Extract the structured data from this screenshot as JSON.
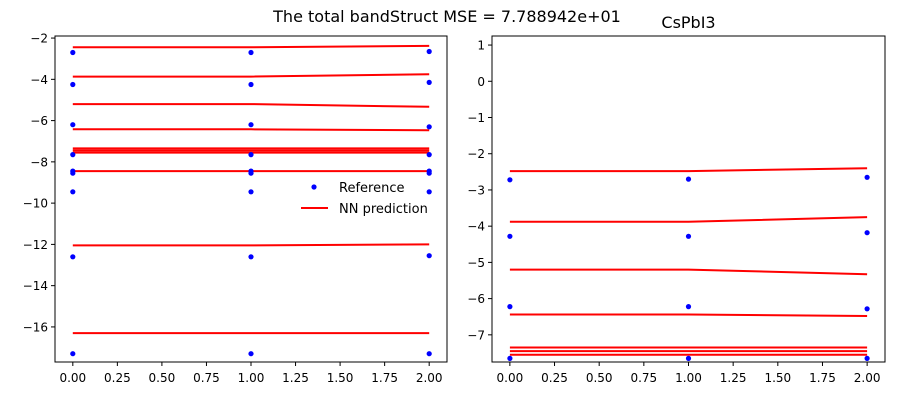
{
  "figure": {
    "suptitle": "The total bandStruct MSE = 7.788942e+01"
  },
  "chart_data": [
    {
      "type": "line",
      "title": "",
      "xlabel": "",
      "ylabel": "",
      "xlim": [
        -0.1,
        2.1
      ],
      "ylim": [
        -17.7,
        -1.9
      ],
      "xticks": [
        0,
        0.25,
        0.5,
        0.75,
        1,
        1.25,
        1.5,
        1.75,
        2
      ],
      "xtick_labels": [
        "0.00",
        "0.25",
        "0.50",
        "0.75",
        "1.00",
        "1.25",
        "1.50",
        "1.75",
        "2.00"
      ],
      "yticks": [
        -16,
        -14,
        -12,
        -10,
        -8,
        -6,
        -4,
        -2
      ],
      "ytick_labels": [
        "−16",
        "−14",
        "−12",
        "−10",
        "−8",
        "−6",
        "−4",
        "−2"
      ],
      "legend": {
        "placement": "center-right",
        "entries": [
          {
            "label": "Reference",
            "marker": "dot",
            "color": "#0000ff"
          },
          {
            "label": "NN prediction",
            "marker": "line",
            "color": "#ff0000"
          }
        ]
      },
      "reference": {
        "name": "Reference",
        "color": "#0000ff",
        "x": [
          0,
          1,
          2
        ],
        "bands": [
          [
            -2.7,
            -2.7,
            -2.65
          ],
          [
            -4.25,
            -4.25,
            -4.15
          ],
          [
            -6.2,
            -6.2,
            -6.3
          ],
          [
            -7.65,
            -7.65,
            -7.65
          ],
          [
            -8.45,
            -8.45,
            -8.45
          ],
          [
            -8.55,
            -8.55,
            -8.55
          ],
          [
            -9.45,
            -9.45,
            -9.45
          ],
          [
            -12.6,
            -12.6,
            -12.55
          ],
          [
            -17.3,
            -17.3,
            -17.3
          ]
        ]
      },
      "prediction": {
        "name": "NN prediction",
        "color": "#ff0000",
        "x": [
          0,
          1,
          2
        ],
        "bands": [
          [
            -2.45,
            -2.45,
            -2.38
          ],
          [
            -3.87,
            -3.87,
            -3.75
          ],
          [
            -5.2,
            -5.2,
            -5.33
          ],
          [
            -6.42,
            -6.42,
            -6.47
          ],
          [
            -7.35,
            -7.35,
            -7.35
          ],
          [
            -7.45,
            -7.45,
            -7.45
          ],
          [
            -7.55,
            -7.55,
            -7.55
          ],
          [
            -8.45,
            -8.45,
            -8.45
          ],
          [
            -12.05,
            -12.05,
            -12.0
          ],
          [
            -16.3,
            -16.3,
            -16.3
          ]
        ]
      }
    },
    {
      "type": "line",
      "title": "CsPbI3",
      "xlabel": "",
      "ylabel": "",
      "xlim": [
        -0.1,
        2.1
      ],
      "ylim": [
        -7.75,
        1.25
      ],
      "xticks": [
        0,
        0.25,
        0.5,
        0.75,
        1,
        1.25,
        1.5,
        1.75,
        2
      ],
      "xtick_labels": [
        "0.00",
        "0.25",
        "0.50",
        "0.75",
        "1.00",
        "1.25",
        "1.50",
        "1.75",
        "2.00"
      ],
      "yticks": [
        -7,
        -6,
        -5,
        -4,
        -3,
        -2,
        -1,
        0,
        1
      ],
      "ytick_labels": [
        "−7",
        "−6",
        "−5",
        "−4",
        "−3",
        "−2",
        "−1",
        "0",
        "1"
      ],
      "reference": {
        "name": "Reference",
        "color": "#0000ff",
        "x": [
          0,
          1,
          2
        ],
        "bands": [
          [
            -2.72,
            -2.7,
            -2.65
          ],
          [
            -4.28,
            -4.28,
            -4.18
          ],
          [
            -6.22,
            -6.22,
            -6.28
          ],
          [
            -7.65,
            -7.65,
            -7.65
          ]
        ]
      },
      "prediction": {
        "name": "NN prediction",
        "color": "#ff0000",
        "x": [
          0,
          1,
          2
        ],
        "bands": [
          [
            -2.48,
            -2.48,
            -2.4
          ],
          [
            -3.88,
            -3.88,
            -3.75
          ],
          [
            -5.2,
            -5.2,
            -5.33
          ],
          [
            -6.44,
            -6.44,
            -6.48
          ],
          [
            -7.35,
            -7.35,
            -7.35
          ],
          [
            -7.45,
            -7.45,
            -7.45
          ],
          [
            -7.55,
            -7.55,
            -7.55
          ]
        ]
      }
    }
  ]
}
